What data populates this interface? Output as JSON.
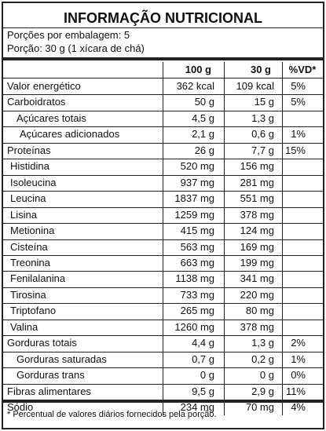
{
  "header": {
    "title": "INFORMAÇÃO NUTRICIONAL",
    "servings": "Porções por embalagem: 5",
    "portion": "Porção: 30 g (1 xícara de chá)"
  },
  "table": {
    "columns": [
      "100 g",
      "30 g",
      "%VD*"
    ],
    "rows": [
      [
        "Valor energético",
        "362 kcal",
        "109 kcal",
        "5%"
      ],
      [
        "Carboidratos",
        "50 g",
        "15 g",
        "5%"
      ],
      [
        "Açúcares totais",
        "4,5 g",
        "1,3 g"
      ],
      [
        "Açúcares adicionados",
        "2,1 g",
        "0,6 g",
        "1%"
      ],
      [
        "Proteínas",
        "26 g",
        "7,7 g",
        "15%"
      ],
      [
        "Histidina",
        "520 mg",
        "156 mg"
      ],
      [
        "Isoleucina",
        "937 mg",
        "281 mg"
      ],
      [
        "Leucina",
        "1837 mg",
        "551 mg"
      ],
      [
        "Lisina",
        "1259 mg",
        "378 mg"
      ],
      [
        "Metionina",
        "415 mg",
        "124 mg"
      ],
      [
        "Cisteína",
        "563 mg",
        "169 mg"
      ],
      [
        "Treonina",
        "663 mg",
        "199 mg"
      ],
      [
        "Fenilalanina",
        "1138 mg",
        "341 mg"
      ],
      [
        "Tirosina",
        "733 mg",
        "220 mg"
      ],
      [
        "Triptofano",
        "265 mg",
        "80 mg"
      ],
      [
        "Valina",
        "1260 mg",
        "378 mg"
      ],
      [
        "Gorduras totais",
        "4,4 g",
        "1,3 g",
        "2%"
      ],
      [
        "Gorduras saturadas",
        "0,7 g",
        "0,2 g",
        "1%"
      ],
      [
        "Gorduras trans",
        "0 g",
        "0 g",
        "0%"
      ],
      [
        "Fibras alimentares",
        "9,5 g",
        "2,9 g",
        "11%"
      ],
      [
        "Sódio",
        "234 mg",
        "70 mg",
        "4%"
      ]
    ]
  },
  "footnote": "* Percentual de valores diários fornecidos pela porção."
}
